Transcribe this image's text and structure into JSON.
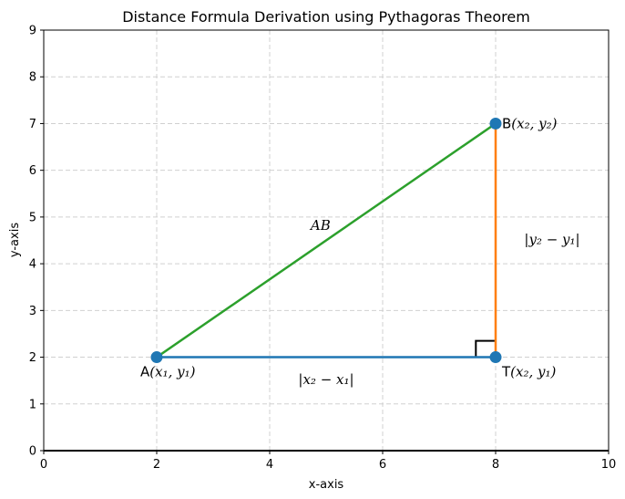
{
  "chart_data": {
    "type": "line",
    "title": "Distance Formula Derivation using Pythagoras Theorem",
    "xlabel": "x-axis",
    "ylabel": "y-axis",
    "xlim": [
      0,
      10
    ],
    "ylim": [
      0,
      9
    ],
    "x_ticks": [
      0,
      2,
      4,
      6,
      8,
      10
    ],
    "y_ticks": [
      0,
      1,
      2,
      3,
      4,
      5,
      6,
      7,
      8,
      9
    ],
    "grid": true,
    "points": [
      {
        "id": "A",
        "x": 2,
        "y": 2,
        "label_prefix": "A",
        "label_coords": "(x₁, y₁)",
        "label_anchor": "start",
        "label_placement": "below"
      },
      {
        "id": "B",
        "x": 8,
        "y": 7,
        "label_prefix": "B",
        "label_coords": "(x₂, y₂)",
        "label_anchor": "start",
        "label_placement": "right"
      },
      {
        "id": "T",
        "x": 8,
        "y": 2,
        "label_prefix": "T",
        "label_coords": "(x₂, y₁)",
        "label_anchor": "start",
        "label_placement": "below-right"
      }
    ],
    "segments": [
      {
        "name": "horizontal",
        "from": [
          2,
          2
        ],
        "to": [
          8,
          2
        ],
        "color": "#1f77b4",
        "label": "|x₂ − x₁|",
        "label_at": [
          5,
          1.5
        ]
      },
      {
        "name": "vertical",
        "from": [
          8,
          2
        ],
        "to": [
          8,
          7
        ],
        "color": "#ff7f0e",
        "label": "|y₂ − y₁|",
        "label_at": [
          9,
          4.5
        ]
      },
      {
        "name": "hypotenuse",
        "from": [
          2,
          2
        ],
        "to": [
          8,
          7
        ],
        "color": "#2ca02c",
        "label": "AB",
        "label_at": [
          4.9,
          4.8
        ]
      }
    ],
    "point_color": "#1f77b4",
    "right_angle_marker": {
      "at": [
        8,
        2
      ],
      "size": 0.35
    }
  }
}
